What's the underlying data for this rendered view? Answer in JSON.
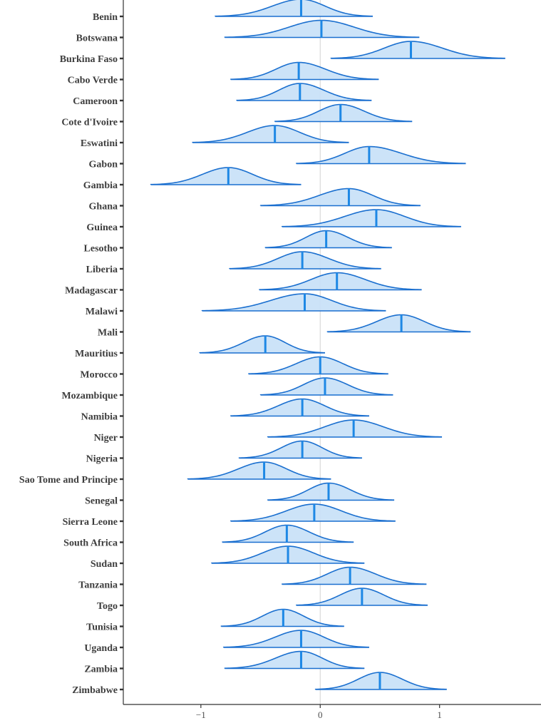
{
  "chart_data": {
    "type": "ridgeline",
    "title": "",
    "xlabel": "",
    "ylabel": "",
    "xlim": [
      -1.65,
      1.85
    ],
    "x_ticks": [
      -1,
      0,
      1
    ],
    "x_tick_labels": [
      "−1",
      "0",
      "1"
    ],
    "zero_reference_line": true,
    "grid": false,
    "colors": {
      "fill": "#c6e0f7",
      "outline": "#1a6fcf",
      "median": "#1e88e5",
      "zero_line": "#d9d9d9",
      "axis": "#333333"
    },
    "categories": [
      "Benin",
      "Botswana",
      "Burkina Faso",
      "Cabo Verde",
      "Cameroon",
      "Cote d'Ivoire",
      "Eswatini",
      "Gabon",
      "Gambia",
      "Ghana",
      "Guinea",
      "Lesotho",
      "Liberia",
      "Madagascar",
      "Malawi",
      "Mali",
      "Mauritius",
      "Morocco",
      "Mozambique",
      "Namibia",
      "Niger",
      "Nigeria",
      "Sao Tome and Principe",
      "Senegal",
      "Sierra Leone",
      "South Africa",
      "Sudan",
      "Tanzania",
      "Togo",
      "Tunisia",
      "Uganda",
      "Zambia",
      "Zimbabwe"
    ],
    "series": [
      {
        "median": -0.16,
        "min": -0.88,
        "max": 0.44
      },
      {
        "median": 0.01,
        "min": -0.8,
        "max": 0.83
      },
      {
        "median": 0.76,
        "min": 0.09,
        "max": 1.55
      },
      {
        "median": -0.18,
        "min": -0.75,
        "max": 0.49
      },
      {
        "median": -0.17,
        "min": -0.7,
        "max": 0.43
      },
      {
        "median": 0.17,
        "min": -0.38,
        "max": 0.77
      },
      {
        "median": -0.38,
        "min": -1.07,
        "max": 0.24
      },
      {
        "median": 0.41,
        "min": -0.2,
        "max": 1.22
      },
      {
        "median": -0.77,
        "min": -1.42,
        "max": -0.16
      },
      {
        "median": 0.24,
        "min": -0.5,
        "max": 0.84
      },
      {
        "median": 0.47,
        "min": -0.32,
        "max": 1.18
      },
      {
        "median": 0.05,
        "min": -0.46,
        "max": 0.6
      },
      {
        "median": -0.15,
        "min": -0.76,
        "max": 0.51
      },
      {
        "median": 0.14,
        "min": -0.51,
        "max": 0.85
      },
      {
        "median": -0.13,
        "min": -0.99,
        "max": 0.55
      },
      {
        "median": 0.68,
        "min": 0.06,
        "max": 1.26
      },
      {
        "median": -0.46,
        "min": -1.01,
        "max": 0.04
      },
      {
        "median": 0.0,
        "min": -0.6,
        "max": 0.57
      },
      {
        "median": 0.04,
        "min": -0.5,
        "max": 0.61
      },
      {
        "median": -0.15,
        "min": -0.75,
        "max": 0.41
      },
      {
        "median": 0.28,
        "min": -0.44,
        "max": 1.02
      },
      {
        "median": -0.15,
        "min": -0.68,
        "max": 0.35
      },
      {
        "median": -0.47,
        "min": -1.11,
        "max": 0.09
      },
      {
        "median": 0.07,
        "min": -0.44,
        "max": 0.62
      },
      {
        "median": -0.05,
        "min": -0.75,
        "max": 0.63
      },
      {
        "median": -0.28,
        "min": -0.82,
        "max": 0.28
      },
      {
        "median": -0.27,
        "min": -0.91,
        "max": 0.37
      },
      {
        "median": 0.25,
        "min": -0.32,
        "max": 0.89
      },
      {
        "median": 0.35,
        "min": -0.2,
        "max": 0.9
      },
      {
        "median": -0.31,
        "min": -0.83,
        "max": 0.2
      },
      {
        "median": -0.16,
        "min": -0.81,
        "max": 0.41
      },
      {
        "median": -0.16,
        "min": -0.8,
        "max": 0.37
      },
      {
        "median": 0.5,
        "min": -0.04,
        "max": 1.06
      }
    ]
  }
}
